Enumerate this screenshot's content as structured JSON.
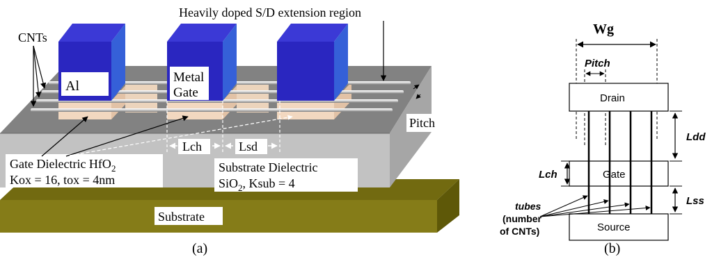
{
  "panel_a": {
    "caption": "(a)",
    "labels": {
      "cnts": "CNTs",
      "extension": "Heavily doped S/D extension region",
      "al": "Al",
      "metal": "Metal",
      "gate": "Gate",
      "pitch": "Pitch",
      "lch": "Lch",
      "lsd": "Lsd",
      "gate_diel_prefix": "Gate Dielectric HfO",
      "gate_diel_sub": "2",
      "kox": "Kox = 16, tox = 4nm",
      "sub_diel": "Substrate Dielectric",
      "sio_prefix": "SiO",
      "sio_sub": "2",
      "ksub": ", Ksub = 4",
      "substrate": "Substrate"
    },
    "colors": {
      "gate_front": "#2a26c0",
      "gate_top": "#3b39d6",
      "gate_side": "#3560d8",
      "dielectric_top": "#828282",
      "dielectric_front": "#c2c2c2",
      "dielectric_side": "#a6a6a6",
      "substrate_top": "#726a10",
      "substrate_front": "#857c18",
      "substrate_side": "#5e5808",
      "hfo2": "#f2d8c0",
      "nanotube": "#d8d8d8"
    }
  },
  "panel_b": {
    "caption": "(b)",
    "labels": {
      "wg": "Wg",
      "pitch": "Pitch",
      "drain": "Drain",
      "gate": "Gate",
      "source": "Source",
      "ldd": "Ldd",
      "lch": "Lch",
      "lss": "Lss",
      "tubes": "tubes",
      "number": "(number",
      "of_cnts": "of CNTs)"
    }
  }
}
